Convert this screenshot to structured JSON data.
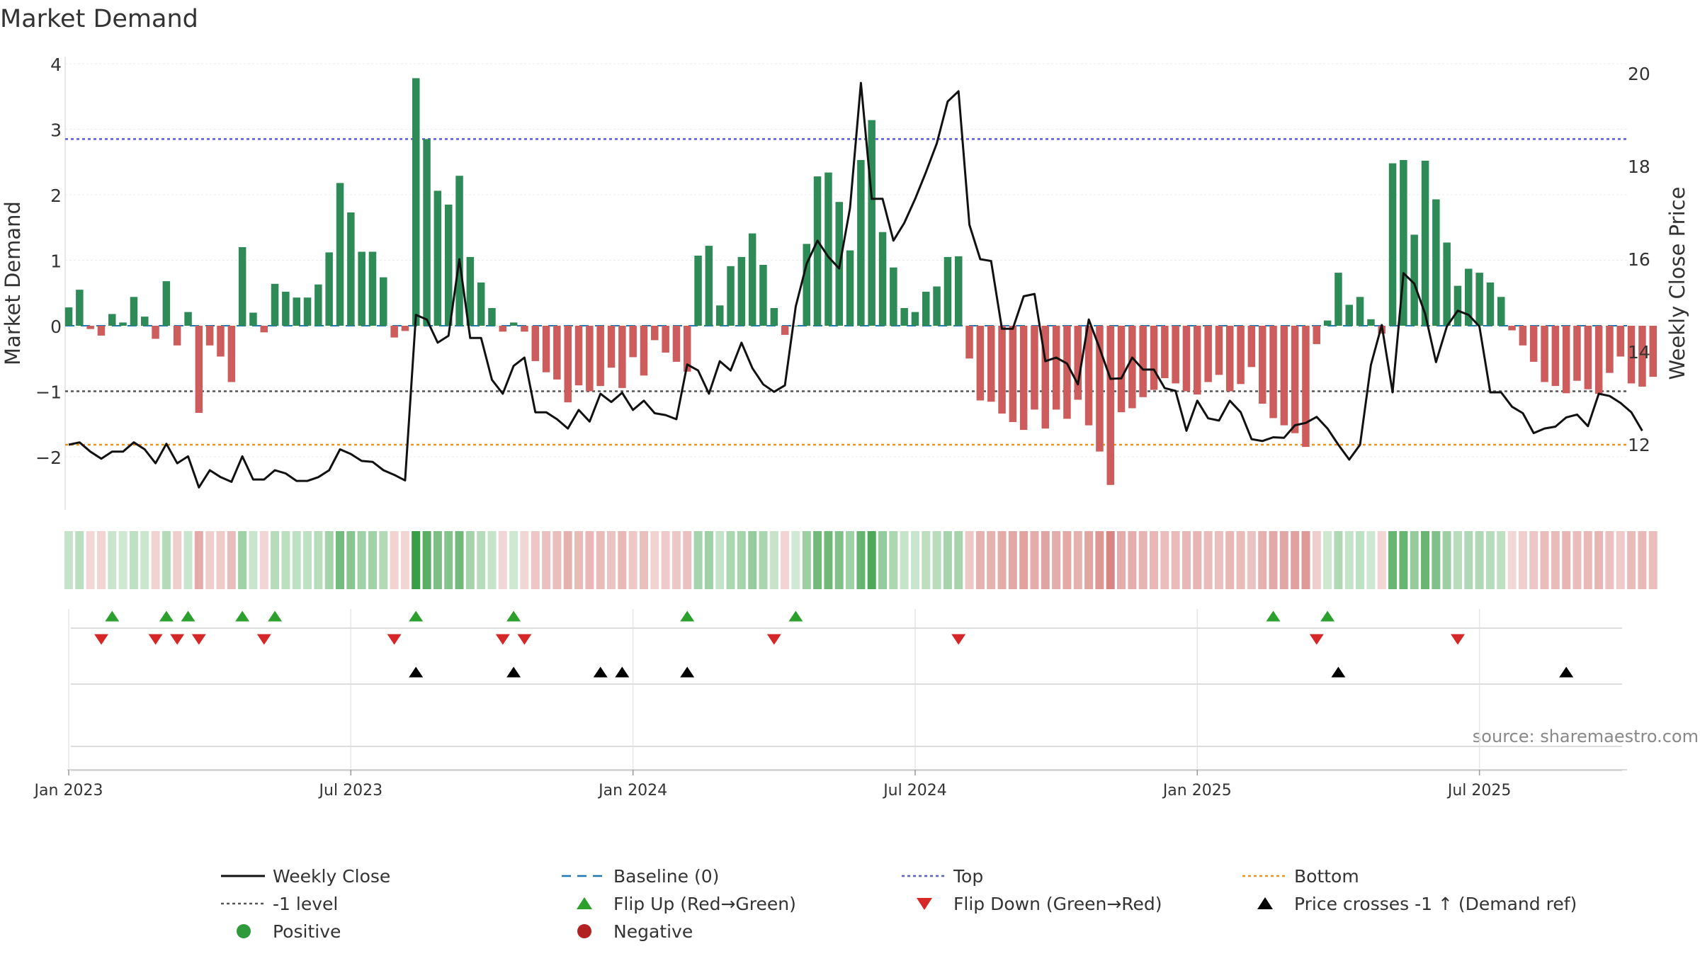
{
  "chart_data": {
    "type": "bar",
    "title": "Market Demand",
    "source": "source: sharemaestro.com",
    "ylabel_left": "Market Demand",
    "ylabel_right": "Weekly Close Price",
    "ylim_left": [
      -2.75,
      4.1
    ],
    "ylim_right": [
      10.8,
      20.2
    ],
    "yticks_left": [
      {
        "v": -2,
        "t": "−2"
      },
      {
        "v": -1,
        "t": "−1"
      },
      {
        "v": 0,
        "t": "0"
      },
      {
        "v": 1,
        "t": "1"
      },
      {
        "v": 2,
        "t": "2"
      },
      {
        "v": 3,
        "t": "3"
      },
      {
        "v": 4,
        "t": "4"
      }
    ],
    "yticks_right": [
      {
        "v": 12,
        "t": "12"
      },
      {
        "v": 14,
        "t": "14"
      },
      {
        "v": 16,
        "t": "16"
      },
      {
        "v": 18,
        "t": "18"
      },
      {
        "v": 20,
        "t": "20"
      }
    ],
    "xticks": [
      {
        "week": 1,
        "t": "Jan 2023"
      },
      {
        "week": 27,
        "t": "Jul 2023"
      },
      {
        "week": 53,
        "t": "Jan 2024"
      },
      {
        "week": 79,
        "t": "Jul 2024"
      },
      {
        "week": 105,
        "t": "Jan 2025"
      },
      {
        "week": 131,
        "t": "Jul 2025"
      }
    ],
    "reference_lines": {
      "top": 2.85,
      "bottom_price": 12.0,
      "minus_one": -1,
      "baseline": 0
    },
    "demand": [
      0.28,
      0.55,
      -0.05,
      -0.15,
      0.18,
      0.05,
      0.44,
      0.14,
      -0.2,
      0.68,
      -0.3,
      0.21,
      -1.33,
      -0.3,
      -0.47,
      -0.86,
      1.2,
      0.2,
      -0.1,
      0.64,
      0.52,
      0.43,
      0.43,
      0.63,
      1.12,
      2.18,
      1.73,
      1.13,
      1.13,
      0.74,
      -0.18,
      -0.08,
      3.78,
      2.85,
      2.06,
      1.85,
      2.29,
      1.05,
      0.66,
      0.27,
      -0.09,
      0.05,
      -0.09,
      -0.54,
      -0.71,
      -0.82,
      -1.17,
      -0.91,
      -1.0,
      -0.92,
      -0.64,
      -0.95,
      -0.48,
      -0.76,
      -0.22,
      -0.41,
      -0.55,
      -0.7,
      1.07,
      1.22,
      0.31,
      0.91,
      1.05,
      1.41,
      0.93,
      0.27,
      -0.14,
      0.0,
      1.25,
      2.28,
      2.34,
      1.89,
      1.15,
      2.53,
      3.14,
      1.43,
      0.89,
      0.27,
      0.21,
      0.52,
      0.6,
      1.05,
      1.06,
      -0.5,
      -1.14,
      -1.16,
      -1.34,
      -1.47,
      -1.59,
      -1.28,
      -1.57,
      -1.28,
      -1.42,
      -1.13,
      -1.52,
      -1.92,
      -2.43,
      -1.32,
      -1.26,
      -1.09,
      -0.98,
      -0.8,
      -0.88,
      -1.0,
      -1.05,
      -0.86,
      -0.75,
      -1.0,
      -0.89,
      -0.63,
      -1.19,
      -1.41,
      -1.52,
      -1.64,
      -1.85,
      -0.28,
      0.08,
      0.81,
      0.32,
      0.44,
      0.1,
      -0.12,
      2.48,
      2.53,
      1.39,
      2.52,
      1.93,
      1.27,
      0.61,
      0.87,
      0.81,
      0.66,
      0.44,
      -0.07,
      -0.3,
      -0.55,
      -0.86,
      -0.92,
      -1.03,
      -0.84,
      -0.97,
      -1.04,
      -0.72,
      -0.47,
      -0.88,
      -0.93,
      -0.78
    ],
    "price": [
      12.0,
      12.05,
      11.85,
      11.7,
      11.85,
      11.85,
      12.05,
      11.9,
      11.6,
      12.02,
      11.6,
      11.75,
      11.08,
      11.45,
      11.3,
      11.2,
      11.75,
      11.25,
      11.25,
      11.45,
      11.38,
      11.22,
      11.22,
      11.3,
      11.45,
      11.9,
      11.8,
      11.65,
      11.63,
      11.45,
      11.35,
      11.23,
      14.8,
      14.7,
      14.2,
      14.35,
      16.0,
      14.3,
      14.3,
      13.4,
      13.1,
      13.7,
      13.88,
      12.7,
      12.7,
      12.55,
      12.35,
      12.75,
      12.5,
      13.1,
      12.92,
      13.12,
      12.75,
      12.95,
      12.68,
      12.64,
      12.55,
      13.73,
      13.6,
      13.1,
      13.8,
      13.6,
      14.2,
      13.65,
      13.3,
      13.14,
      13.28,
      14.98,
      15.9,
      16.4,
      16.05,
      15.8,
      17.1,
      19.8,
      17.3,
      17.3,
      16.4,
      16.78,
      17.3,
      17.88,
      18.5,
      19.4,
      19.62,
      16.74,
      16.0,
      15.96,
      14.5,
      14.5,
      15.2,
      15.25,
      13.8,
      13.88,
      13.75,
      13.3,
      14.7,
      14.08,
      13.42,
      13.43,
      13.88,
      13.62,
      13.62,
      13.22,
      13.16,
      12.3,
      12.95,
      12.57,
      12.52,
      12.95,
      12.7,
      12.12,
      12.08,
      12.16,
      12.15,
      12.42,
      12.47,
      12.6,
      12.35,
      12.0,
      11.68,
      12.0,
      13.72,
      14.58,
      13.13,
      15.7,
      15.47,
      14.82,
      13.78,
      14.55,
      14.89,
      14.8,
      14.55,
      13.13,
      13.13,
      12.82,
      12.68,
      12.25,
      12.35,
      12.39,
      12.59,
      12.65,
      12.4,
      13.1,
      13.05,
      12.9,
      12.7,
      12.3
    ],
    "flip_up_weeks": [
      5,
      10,
      12,
      17,
      20,
      33,
      42,
      58,
      68,
      112,
      117
    ],
    "flip_down_weeks": [
      4,
      9,
      11,
      13,
      19,
      31,
      41,
      43,
      66,
      83,
      116,
      129
    ],
    "price_cross_weeks": [
      33,
      42,
      50,
      52,
      58,
      118,
      139
    ],
    "legend": [
      {
        "key": "weekly-close",
        "label": "Weekly Close",
        "color": "#111111",
        "marker": "line-solid"
      },
      {
        "key": "baseline",
        "label": "Baseline (0)",
        "color": "#1f77b4",
        "marker": "line-dashed"
      },
      {
        "key": "top",
        "label": "Top",
        "color": "#5b5bd6",
        "marker": "line-dotted"
      },
      {
        "key": "bottom",
        "label": "Bottom",
        "color": "#e69520",
        "marker": "line-dotted"
      },
      {
        "key": "minus-one",
        "label": "-1 level",
        "color": "#555555",
        "marker": "line-dotted"
      },
      {
        "key": "flip-up",
        "label": "Flip Up (Red→Green)",
        "color": "#2ca02c",
        "marker": "triangle-up"
      },
      {
        "key": "flip-down",
        "label": "Flip Down (Green→Red)",
        "color": "#d62728",
        "marker": "triangle-down"
      },
      {
        "key": "price-cross",
        "label": "Price crosses -1 ↑ (Demand ref)",
        "color": "#000000",
        "marker": "triangle-up"
      },
      {
        "key": "positive",
        "label": "Positive",
        "color": "#2e9a3c",
        "marker": "circle"
      },
      {
        "key": "negative",
        "label": "Negative",
        "color": "#b22222",
        "marker": "circle"
      }
    ],
    "colors": {
      "positive_bar": "#2e8b57",
      "negative_bar": "#cd5c5c",
      "price_line": "#111111",
      "top_line": "#5b5bd6",
      "bottom_line": "#e69520",
      "minus_one_line": "#555555",
      "baseline": "#1f77b4",
      "heat_positive": "#2e9a3c",
      "heat_negative": "#c75450"
    }
  }
}
